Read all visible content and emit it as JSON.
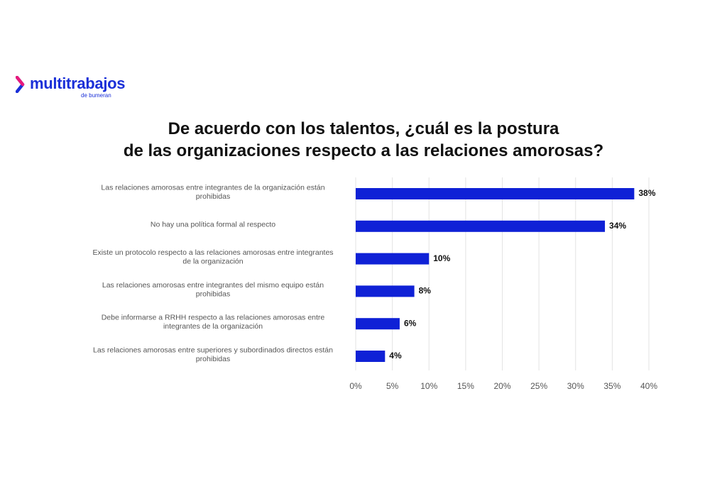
{
  "logo": {
    "name": "multitrabajos",
    "sub": "de bumeran"
  },
  "colors": {
    "bar": "#0f21d6",
    "logo_blue": "#1a2fd8",
    "logo_accent": "#e8197b",
    "grid": "#e3e3e3"
  },
  "chart_data": {
    "type": "bar",
    "orientation": "horizontal",
    "title_lines": [
      "De acuerdo con los talentos, ¿cuál es la postura",
      "de las organizaciones respecto a las relaciones amorosas?"
    ],
    "categories": [
      [
        "Las relaciones amorosas entre integrantes de la organización están",
        "prohibidas"
      ],
      [
        "No hay una política formal al respecto"
      ],
      [
        "Existe un protocolo respecto a las relaciones amorosas entre integrantes",
        "de la organización"
      ],
      [
        "Las relaciones amorosas entre integrantes del mismo equipo están",
        "prohibidas"
      ],
      [
        "Debe informarse a RRHH respecto a las relaciones amorosas entre",
        "integrantes de la organización"
      ],
      [
        "Las relaciones amorosas entre superiores y subordinados directos están",
        "prohibidas"
      ]
    ],
    "values": [
      38,
      34,
      10,
      8,
      6,
      4
    ],
    "value_labels": [
      "38%",
      "34%",
      "10%",
      "8%",
      "6%",
      "4%"
    ],
    "xlim": [
      0,
      40
    ],
    "x_ticks": [
      0,
      5,
      10,
      15,
      20,
      25,
      30,
      35,
      40
    ],
    "x_tick_labels": [
      "0%",
      "5%",
      "10%",
      "15%",
      "20%",
      "25%",
      "30%",
      "35%",
      "40%"
    ],
    "grid": true,
    "legend": "none"
  }
}
